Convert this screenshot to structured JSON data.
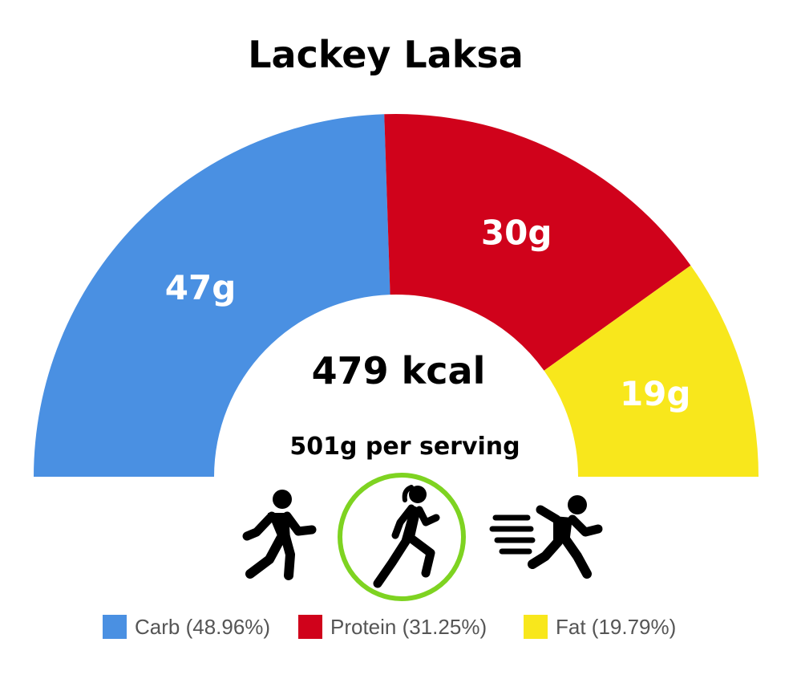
{
  "chart_data": {
    "type": "pie",
    "subtype": "half-donut",
    "title": "Lackey Laksa",
    "center_text": {
      "kcal": "479 kcal",
      "serving": "501g per serving"
    },
    "slices": [
      {
        "name": "Carb",
        "value": 47,
        "label": "47g",
        "percent": 48.96,
        "legend": "Carb (48.96%)",
        "color": "#4a90e2"
      },
      {
        "name": "Protein",
        "value": 30,
        "label": "30g",
        "percent": 31.25,
        "legend": "Protein (31.25%)",
        "color": "#d0021b"
      },
      {
        "name": "Fat",
        "value": 19,
        "label": "19g",
        "percent": 19.79,
        "legend": "Fat (19.79%)",
        "color": "#f8e71c"
      }
    ],
    "legend_position": "bottom",
    "activity_icons": [
      {
        "icon": "walking-icon",
        "highlighted": false
      },
      {
        "icon": "jogging-icon",
        "highlighted": true,
        "ring_color": "#7ed321"
      },
      {
        "icon": "sprinting-icon",
        "highlighted": false
      }
    ]
  }
}
